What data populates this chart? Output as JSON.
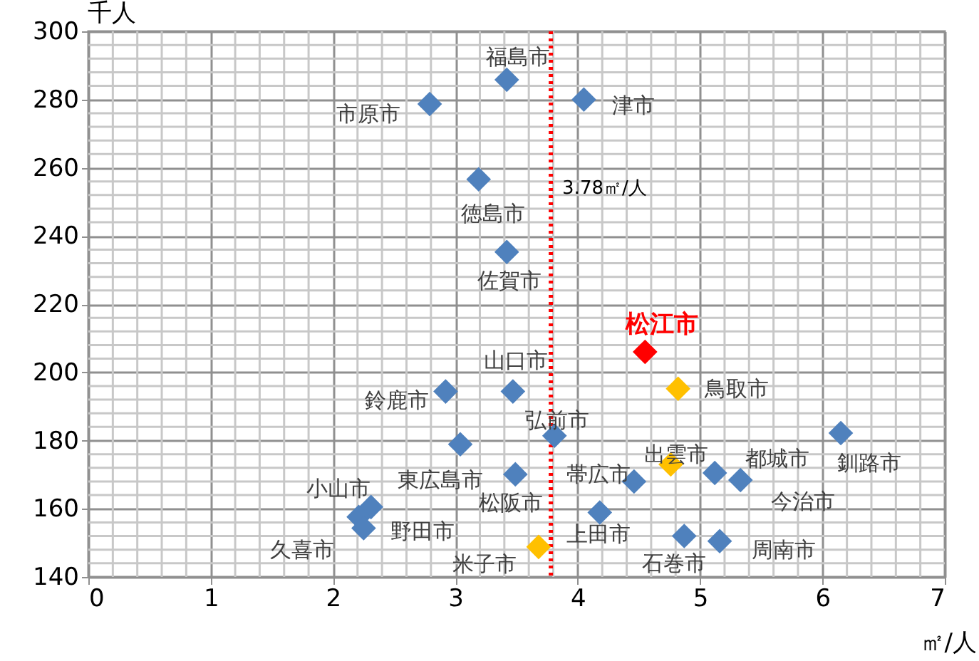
{
  "chart_data": {
    "type": "scatter",
    "xlabel": "㎡/人",
    "ylabel": "千人",
    "xlim": [
      0,
      7
    ],
    "ylim": [
      140,
      300
    ],
    "xticks": [
      0,
      1,
      2,
      3,
      4,
      5,
      6,
      7
    ],
    "yticks": [
      140,
      160,
      180,
      200,
      220,
      240,
      260,
      280,
      300
    ],
    "grid": true,
    "marker": "diamond",
    "series": [
      {
        "color": "#4f81bd",
        "x": [
          3.42,
          2.79,
          4.05,
          3.19,
          3.42,
          2.92,
          3.47,
          3.81,
          3.04,
          3.49,
          2.31,
          2.21,
          2.25,
          4.18,
          4.46,
          5.12,
          5.33,
          6.15,
          4.87,
          5.16
        ],
        "values": [
          285.8,
          278.7,
          280,
          256.6,
          235.3,
          194.4,
          194.4,
          181.4,
          178.9,
          170.1,
          160.5,
          157.6,
          154.3,
          158.9,
          168,
          170.5,
          168.4,
          182.2,
          152,
          150.5
        ],
        "value_labels": [
          "福島市",
          "市原市",
          "津市",
          "徳島市",
          "佐賀市",
          "鈴鹿市",
          "山口市",
          "弘前市",
          "東広島市",
          "松阪市",
          "小山市",
          "野田市",
          "久喜市",
          "上田市",
          "帯広市",
          "都城市",
          "今治市",
          "釧路市",
          "石巻市",
          "周南市"
        ]
      },
      {
        "color": "#ffc000",
        "x": [
          4.82,
          4.76,
          3.68
        ],
        "values": [
          195.2,
          173,
          148.8
        ],
        "value_labels": [
          "鳥取市",
          "出雲市",
          "米子市"
        ]
      },
      {
        "color": "#ff0000",
        "x": [
          4.55
        ],
        "values": [
          206
        ],
        "value_labels": [
          "松江市"
        ]
      }
    ],
    "ref_lines": [
      {
        "axis": "x",
        "value": 3.78,
        "label": "3.78㎡/人",
        "color": "#ff0000",
        "line_style": "dotted"
      }
    ]
  }
}
